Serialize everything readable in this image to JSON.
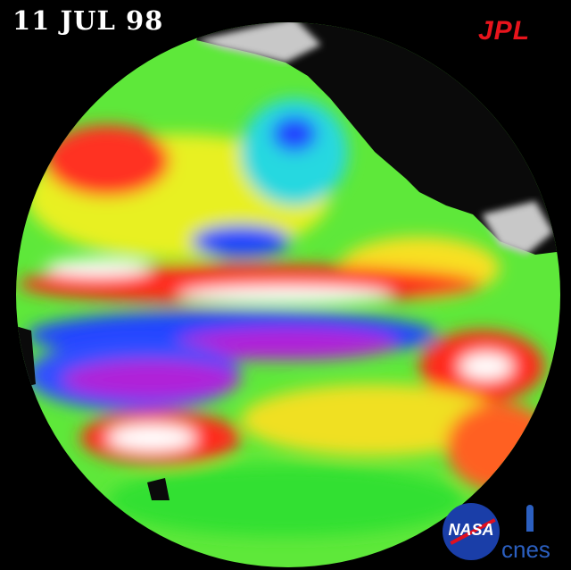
{
  "date_label": "11 JUL 98",
  "logos": {
    "jpl": "JPL",
    "nasa": "NASA",
    "cnes": "cnes"
  },
  "colors": {
    "background": "#000000",
    "land": "#0a0a0a",
    "ice": "#c8c8c8",
    "high": "#ffffff",
    "warm": "#ff2a1a",
    "neutral": "#22dd33",
    "cool": "#2244ff",
    "low": "#b020d8"
  }
}
